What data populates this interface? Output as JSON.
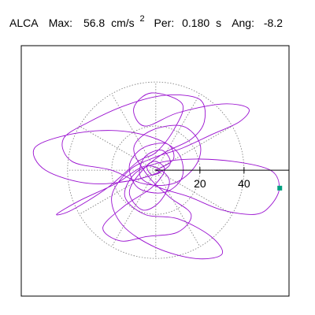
{
  "chart_data": {
    "type": "particle-motion",
    "station": "ALCA",
    "max_label": "Max:",
    "max": 56.8,
    "max_unit": "cm/s",
    "max_unit_exp": "2",
    "period_label": "Per:",
    "period": {
      "value": 0.18,
      "label": "0.180"
    },
    "period_unit": "s",
    "angle_label": "Ang:",
    "angle": -8.2,
    "xlim": [
      -61,
      60.4
    ],
    "ylim": [
      -57,
      56.4
    ],
    "xticks": [
      20,
      40
    ],
    "rings": [
      20,
      40
    ],
    "color": "#9a10d0",
    "peak_color": "#00a080",
    "peak": {
      "x": 56.2,
      "y": -8.1
    },
    "x": [
      0,
      8,
      5,
      -6,
      -12,
      -8,
      4,
      12,
      10,
      -2,
      -20,
      -40,
      -55,
      -50,
      -30,
      -8,
      6,
      3,
      -5,
      -7,
      2,
      15,
      30,
      45,
      52,
      56,
      52,
      35,
      15,
      0,
      -10,
      -14,
      -5,
      10,
      25,
      30,
      18,
      0,
      -15,
      -20,
      -12,
      0,
      12,
      25,
      38,
      42,
      30,
      10,
      -5,
      -10,
      -2,
      12,
      8,
      0,
      -8,
      -22,
      -38,
      -45,
      -35,
      -18,
      -4,
      6,
      2,
      -6,
      -12,
      -6,
      4,
      16,
      22,
      20,
      5,
      -12,
      -30,
      -42,
      -38,
      -20,
      -6,
      8,
      18,
      20,
      12,
      -2,
      -10,
      -4,
      6,
      16,
      10,
      -4,
      -16,
      -24,
      -14,
      -2,
      4,
      0,
      -4,
      -2,
      2,
      0
    ],
    "y": [
      0,
      5,
      12,
      10,
      2,
      -8,
      -10,
      -3,
      8,
      15,
      18,
      16,
      10,
      0,
      -6,
      -4,
      2,
      9,
      6,
      -3,
      -8,
      -12,
      -18,
      -20,
      -16,
      -8,
      0,
      4,
      5,
      3,
      -2,
      -12,
      -20,
      -22,
      -30,
      -38,
      -40,
      -35,
      -25,
      -12,
      0,
      6,
      10,
      16,
      22,
      28,
      30,
      26,
      20,
      28,
      35,
      30,
      18,
      8,
      4,
      -8,
      -18,
      -20,
      -14,
      -6,
      2,
      -4,
      -14,
      -18,
      -10,
      0,
      8,
      14,
      22,
      32,
      34,
      30,
      22,
      14,
      4,
      0,
      -6,
      -6,
      2,
      12,
      20,
      18,
      10,
      -2,
      -12,
      -20,
      -28,
      -30,
      -32,
      -26,
      -16,
      -8,
      0,
      4,
      2,
      -2,
      -1,
      0
    ]
  }
}
